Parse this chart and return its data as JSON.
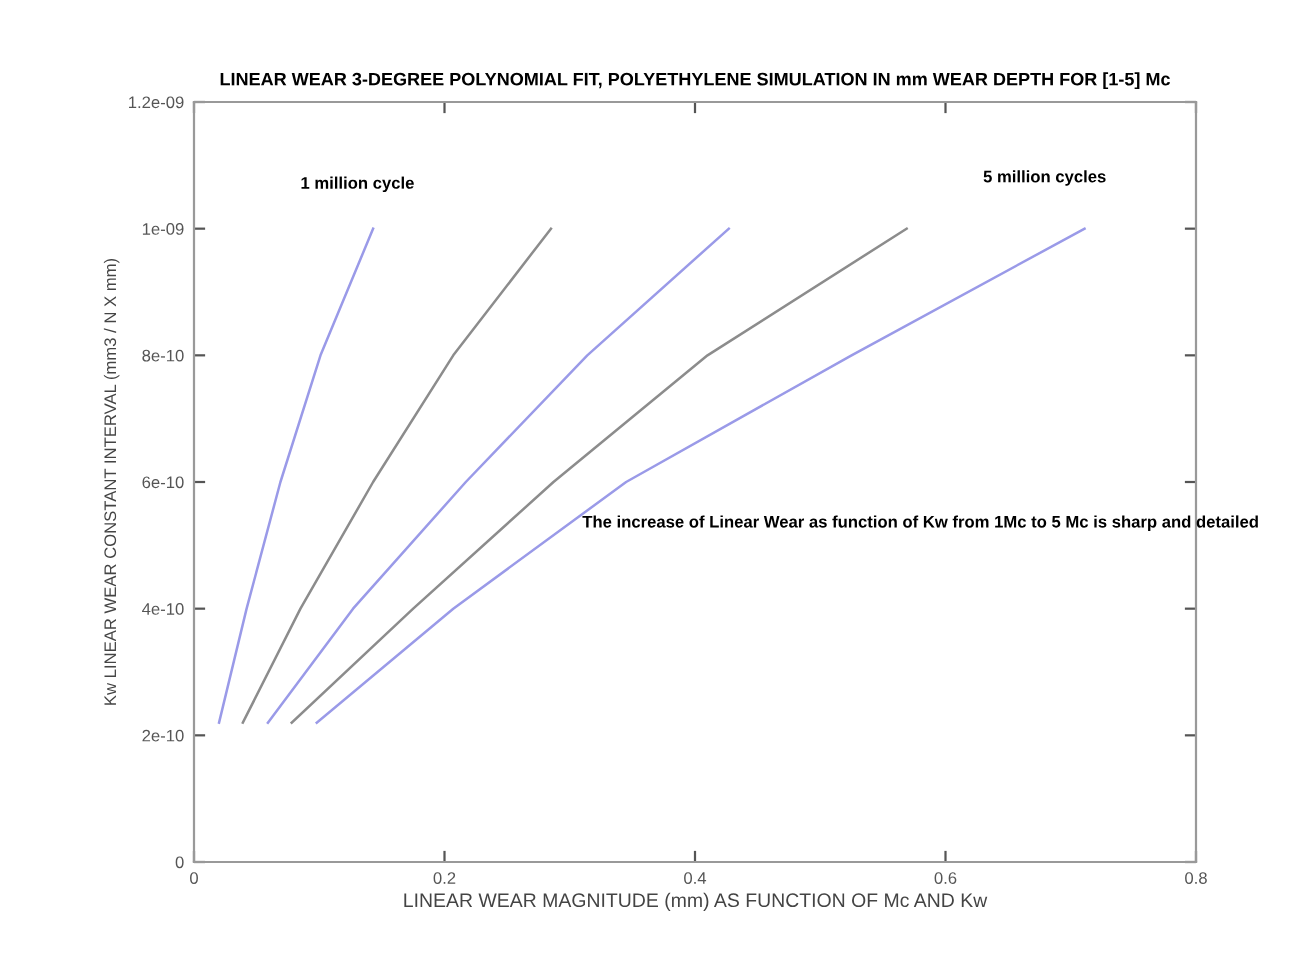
{
  "chart_data": {
    "type": "line",
    "title": "LINEAR WEAR 3-DEGREE POLYNOMIAL FIT, POLYETHYLENE SIMULATION IN mm WEAR DEPTH FOR [1-5] Mc",
    "xlabel": "LINEAR WEAR MAGNITUDE (mm) AS FUNCTION OF Mc AND Kw",
    "ylabel": "Kw LINEAR WEAR CONSTANT INTERVAL (mm3 / N X mm)",
    "series": [
      {
        "color": "#9a9ae8",
        "x": [
          0.02,
          0.042,
          0.069,
          0.101,
          0.143
        ],
        "values": [
          2.2e-10,
          4e-10,
          6e-10,
          8e-10,
          1e-09
        ]
      },
      {
        "color": "#8c8c8c",
        "x": [
          0.039,
          0.085,
          0.143,
          0.207,
          0.285
        ],
        "values": [
          2.2e-10,
          4e-10,
          6e-10,
          8e-10,
          1e-09
        ]
      },
      {
        "color": "#9a9ae8",
        "x": [
          0.059,
          0.127,
          0.217,
          0.314,
          0.427
        ],
        "values": [
          2.2e-10,
          4e-10,
          6e-10,
          8e-10,
          1e-09
        ]
      },
      {
        "color": "#8c8c8c",
        "x": [
          0.078,
          0.175,
          0.287,
          0.41,
          0.569
        ],
        "values": [
          2.2e-10,
          4e-10,
          6e-10,
          8e-10,
          1e-09
        ]
      },
      {
        "color": "#9a9ae8",
        "x": [
          0.098,
          0.207,
          0.345,
          0.525,
          0.711
        ],
        "values": [
          2.2e-10,
          4e-10,
          6e-10,
          8e-10,
          1e-09
        ]
      }
    ],
    "annotations": [
      "1 million cycle",
      "5 million cycles",
      "The increase of Linear Wear as function of Kw from 1Mc to 5 Mc is sharp and detailed"
    ],
    "xlim": [
      0,
      0.8
    ],
    "xticks": [
      0,
      0.2,
      0.4,
      0.6,
      0.8
    ],
    "ylim": [
      0,
      1.2e-09
    ],
    "yticks": [
      0,
      {
        "value": 2e-10,
        "label": "2e-10"
      },
      {
        "value": 4e-10,
        "label": "4e-10"
      },
      {
        "value": 6e-10,
        "label": "6e-10"
      },
      {
        "value": 8e-10,
        "label": "8e-10"
      },
      {
        "value": 1e-09,
        "label": "1e-09"
      },
      {
        "value": 1.2e-09,
        "label": "1.2e-09"
      }
    ],
    "grid": false,
    "legend": false,
    "marker": "none",
    "line_style": "solid"
  }
}
